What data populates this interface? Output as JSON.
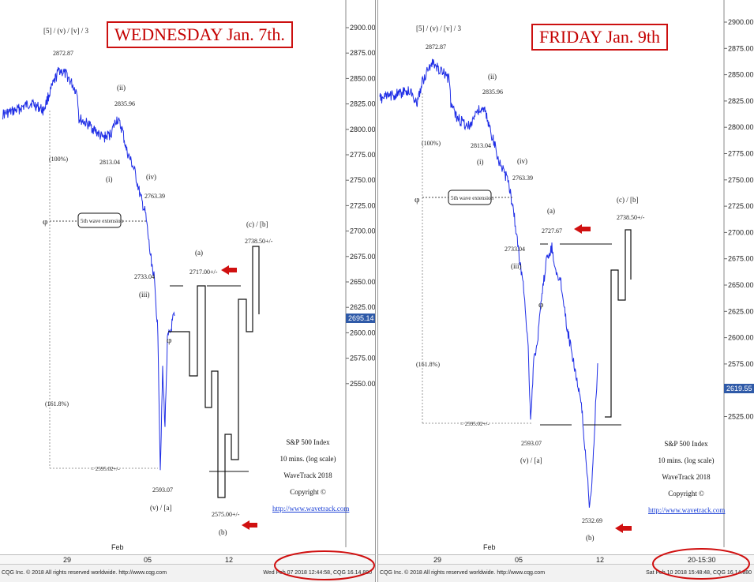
{
  "chart_data": [
    {
      "type": "line",
      "title": "WEDNESDAY Jan. 7th.",
      "wave_count_label": "[5] / (v) / [v] / 3",
      "y_ticks": [
        "2900.00",
        "2875.00",
        "2850.00",
        "2825.00",
        "2800.00",
        "2775.00",
        "2750.00",
        "2725.00",
        "2700.00",
        "2675.00",
        "2650.00",
        "2625.00",
        "2600.00",
        "2575.00",
        "2550.00"
      ],
      "x_ticks": [
        "29",
        "05",
        "12"
      ],
      "x_month_label": "Feb",
      "last_price": "2695.14",
      "annotations": [
        {
          "label": "2872.87",
          "sub": ""
        },
        {
          "label": "2835.96",
          "sub": "(ii)"
        },
        {
          "label": "2813.04",
          "sub": "(i)"
        },
        {
          "label": "2763.39",
          "sub": "(iv)"
        },
        {
          "label": "2733.04",
          "sub": "(iii)"
        },
        {
          "label": "2593.07",
          "sub": "(v) / [a]"
        },
        {
          "label": "(a)",
          "sub": "2717.00+/-"
        },
        {
          "label": "(c) / [b]",
          "sub": "2738.50+/-"
        },
        {
          "label": "2575.00+/-",
          "sub": "(b)"
        },
        {
          "label": "(100%)",
          "sub": ""
        },
        {
          "label": "(161.8%)",
          "sub": ""
        },
        {
          "label": "= 2595.02+/-",
          "sub": ""
        }
      ],
      "callout": "5th wave extension",
      "info_lines": [
        "S&P 500 Index",
        "10 mins. (log scale)",
        "WaveTrack 2018",
        "Copyright ©",
        "http://www.wavetrack.com"
      ],
      "footer_copy": "CQG Inc. © 2018 All rights reserved worldwide. http://www.cqg.com",
      "footer_stamp": "Wed Feb 07 2018 12:44:58, CQG 16.14.880"
    },
    {
      "type": "line",
      "title": "FRIDAY Jan. 9th",
      "wave_count_label": "[5] / (v) / [v] / 3",
      "y_ticks": [
        "2900.00",
        "2875.00",
        "2850.00",
        "2825.00",
        "2800.00",
        "2775.00",
        "2750.00",
        "2725.00",
        "2700.00",
        "2675.00",
        "2650.00",
        "2625.00",
        "2600.00",
        "2575.00",
        "2550.00",
        "2525.00"
      ],
      "x_ticks": [
        "29",
        "05",
        "12"
      ],
      "x_month_label": "Feb",
      "last_price": "2619.55",
      "annotations": [
        {
          "label": "2872.87",
          "sub": ""
        },
        {
          "label": "2835.96",
          "sub": "(ii)"
        },
        {
          "label": "2813.04",
          "sub": "(i)"
        },
        {
          "label": "2763.39",
          "sub": "(iv)"
        },
        {
          "label": "2733.04",
          "sub": "(iii)"
        },
        {
          "label": "2593.07",
          "sub": "(v) / [a]"
        },
        {
          "label": "(a)",
          "sub": "2727.67"
        },
        {
          "label": "(c) / [b]",
          "sub": "2738.50+/-"
        },
        {
          "label": "2532.69",
          "sub": "(b)"
        },
        {
          "label": "(100%)",
          "sub": ""
        },
        {
          "label": "(161.8%)",
          "sub": ""
        },
        {
          "label": "= 2595.02+/-",
          "sub": ""
        }
      ],
      "callout": "5th wave extension",
      "info_lines": [
        "S&P 500 Index",
        "10 mins. (log scale)",
        "WaveTrack 2018",
        "Copyright ©",
        "http://www.wavetrack.com"
      ],
      "footer_copy": "CQG Inc. © 2018 All rights reserved worldwide. http://www.cqg.com",
      "footer_stamp": "Sat Feb 10 2018 15:48:48, CQG 16.14.880",
      "footer_clock": "20-15:30"
    }
  ]
}
